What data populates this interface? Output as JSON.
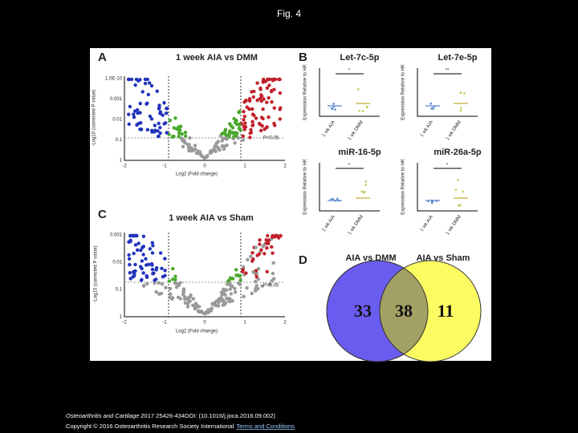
{
  "header": {
    "title": "Fig. 4"
  },
  "panels": {
    "a": {
      "label": "A",
      "title": "1 week AIA vs DMM",
      "x_label": "Log2 (Fold change)",
      "y_label": "-Log10 (corrected P value)",
      "x_ticks": [
        "-2",
        "-1",
        "0",
        "1",
        "2"
      ],
      "y_ticks": [
        "1.0E-10",
        "0.001",
        "0.01",
        "0.1",
        "1"
      ],
      "annotation": "P=0.05"
    },
    "b": {
      "label": "B",
      "y_label": "Expression Relative to HK",
      "groups": [
        "1 wk AIA",
        "1 wk DMM"
      ],
      "plots": [
        {
          "title": "Let-7c-5p",
          "marker": "*"
        },
        {
          "title": "Let-7e-5p",
          "marker": "**"
        },
        {
          "title": "miR-16-5p",
          "marker": "*"
        },
        {
          "title": "miR-26a-5p",
          "marker": "*"
        }
      ]
    },
    "c": {
      "label": "C",
      "title": "1 week AIA vs Sham",
      "x_label": "Log2 (Fold change)",
      "y_label": "-Log10 (corrected P value)",
      "x_ticks": [
        "-2",
        "-1",
        "0",
        "1",
        "2"
      ],
      "y_ticks": [
        "0.001",
        "0.01",
        "0.1",
        "1"
      ],
      "annotation": "P=0.05"
    },
    "d": {
      "label": "D",
      "left_title": "AIA vs DMM",
      "right_title": "AIA vs Sham",
      "left_only": "33",
      "overlap": "38",
      "right_only": "11"
    }
  },
  "footer": {
    "journal": "Osteoarthritis and Cartilage",
    "citation": " 2017 25426-434DOI: (10.1016/j.joca.2016.09.002)",
    "copyright": "Copyright © 2016 Osteoarthritis Research Society International",
    "link": "Terms and Conditions"
  }
}
